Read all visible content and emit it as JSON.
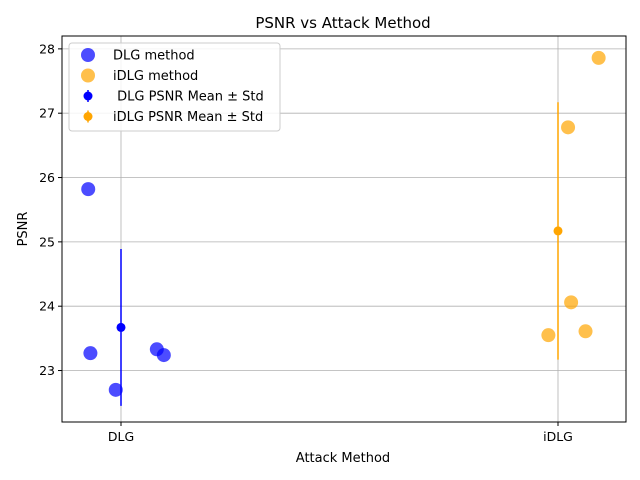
{
  "chart_data": {
    "type": "scatter",
    "title": "PSNR vs Attack Method",
    "xlabel": "Attack Method",
    "ylabel": "PSNR",
    "categories": [
      "DLG",
      "iDLG"
    ],
    "ylim": [
      22.2,
      28.2
    ],
    "yticks": [
      23,
      24,
      25,
      26,
      27,
      28
    ],
    "grid": true,
    "legend_position": "top-left",
    "series": [
      {
        "name": "DLG method",
        "kind": "points",
        "color": "#0000ff",
        "points": [
          {
            "x": -0.075,
            "y": 25.82
          },
          {
            "x": -0.07,
            "y": 23.27
          },
          {
            "x": -0.012,
            "y": 22.7
          },
          {
            "x": 0.082,
            "y": 23.33
          },
          {
            "x": 0.098,
            "y": 23.24
          }
        ]
      },
      {
        "name": "iDLG method",
        "kind": "points",
        "color": "#ffa500",
        "points": [
          {
            "x": 0.093,
            "y": 27.86
          },
          {
            "x": 0.023,
            "y": 26.78
          },
          {
            "x": 0.03,
            "y": 24.06
          },
          {
            "x": 0.063,
            "y": 23.61
          },
          {
            "x": -0.022,
            "y": 23.55
          }
        ]
      },
      {
        "name": " DLG PSNR Mean ± Std",
        "kind": "errorbar",
        "color": "#0000ff",
        "category": "DLG",
        "mean": 23.67,
        "std": 1.22
      },
      {
        "name": "iDLG PSNR Mean ± Std",
        "kind": "errorbar",
        "color": "#ffa500",
        "category": "iDLG",
        "mean": 25.17,
        "std": 2.0
      }
    ]
  }
}
